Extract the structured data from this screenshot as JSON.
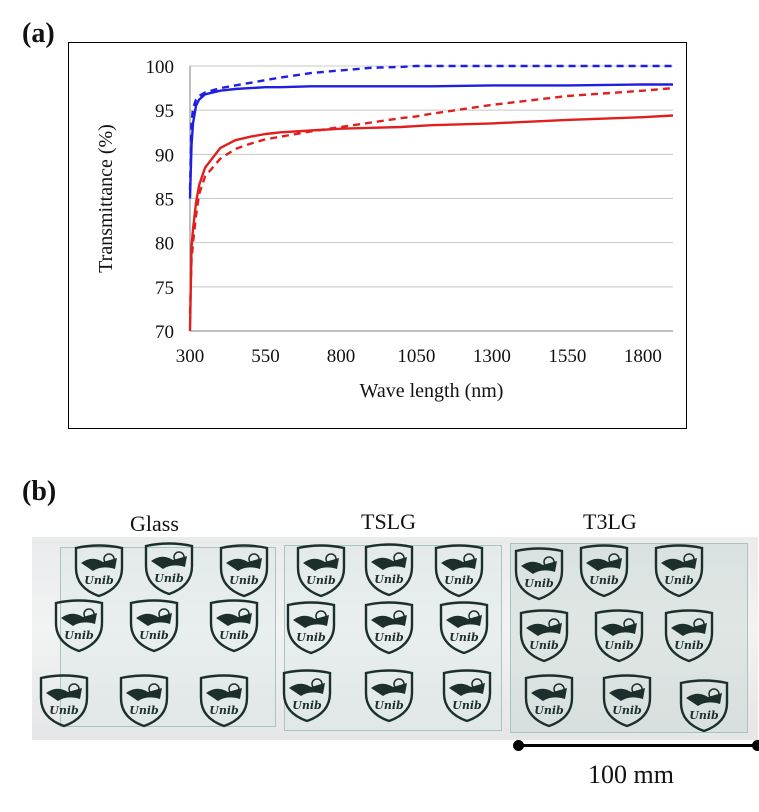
{
  "panel_a_label": "(a)",
  "panel_b_label": "(b)",
  "chart_data": {
    "type": "line",
    "xlabel": "Wave length (nm)",
    "ylabel": "Transmittance  (%)",
    "xlim": [
      300,
      1900
    ],
    "ylim": [
      70,
      100
    ],
    "x_ticks": [
      300,
      550,
      800,
      1050,
      1300,
      1550,
      1800
    ],
    "y_ticks": [
      70,
      75,
      80,
      85,
      90,
      95,
      100
    ],
    "grid": "horizontal",
    "x": [
      300,
      305,
      310,
      320,
      330,
      350,
      400,
      450,
      500,
      550,
      600,
      700,
      800,
      900,
      1000,
      1050,
      1100,
      1300,
      1550,
      1800,
      1900
    ],
    "series": [
      {
        "color": "#1f1fe0",
        "style": "solid",
        "values": [
          85.0,
          91.0,
          93.5,
          95.5,
          96.2,
          96.8,
          97.2,
          97.4,
          97.5,
          97.6,
          97.6,
          97.7,
          97.7,
          97.7,
          97.7,
          97.7,
          97.7,
          97.8,
          97.8,
          97.9,
          97.9
        ]
      },
      {
        "color": "#1f1fe0",
        "style": "dashed",
        "values": [
          86.0,
          93.5,
          95.2,
          96.2,
          96.6,
          97.0,
          97.5,
          97.8,
          98.1,
          98.4,
          98.7,
          99.2,
          99.5,
          99.8,
          99.9,
          100.0,
          100.0,
          100.0,
          100.0,
          100.0,
          100.0
        ]
      },
      {
        "color": "#e01f1f",
        "style": "solid",
        "values": [
          70.0,
          79.5,
          81.5,
          84.5,
          86.5,
          88.5,
          90.7,
          91.6,
          92.0,
          92.3,
          92.5,
          92.7,
          92.9,
          93.0,
          93.1,
          93.2,
          93.3,
          93.5,
          93.9,
          94.2,
          94.4
        ]
      },
      {
        "color": "#e01f1f",
        "style": "dashed",
        "values": [
          72.0,
          78.0,
          80.0,
          83.0,
          85.5,
          87.5,
          89.5,
          90.6,
          91.2,
          91.7,
          92.0,
          92.6,
          93.1,
          93.6,
          94.1,
          94.3,
          94.6,
          95.6,
          96.6,
          97.2,
          97.5
        ]
      }
    ]
  },
  "photo": {
    "labels": [
      "Glass",
      "TSLG",
      "T3LG"
    ],
    "logo_text": "Unib"
  },
  "scale_bar_label": "100 mm"
}
